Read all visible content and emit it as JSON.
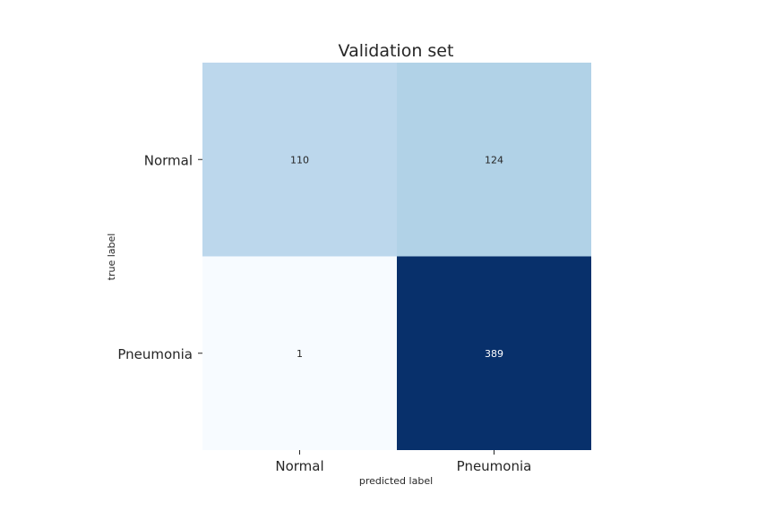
{
  "chart_data": {
    "type": "heatmap",
    "title": "Validation set",
    "xlabel": "predicted label",
    "ylabel": "true label",
    "x_categories": [
      "Normal",
      "Pneumonia"
    ],
    "y_categories": [
      "Normal",
      "Pneumonia"
    ],
    "values": [
      [
        110,
        124
      ],
      [
        1,
        389
      ]
    ],
    "colormap": "Blues",
    "color_low": "#f7fbff",
    "color_high": "#08306b",
    "text_dark": "#262626",
    "text_light": "#ffffff",
    "grid": false,
    "colorbar": false
  }
}
